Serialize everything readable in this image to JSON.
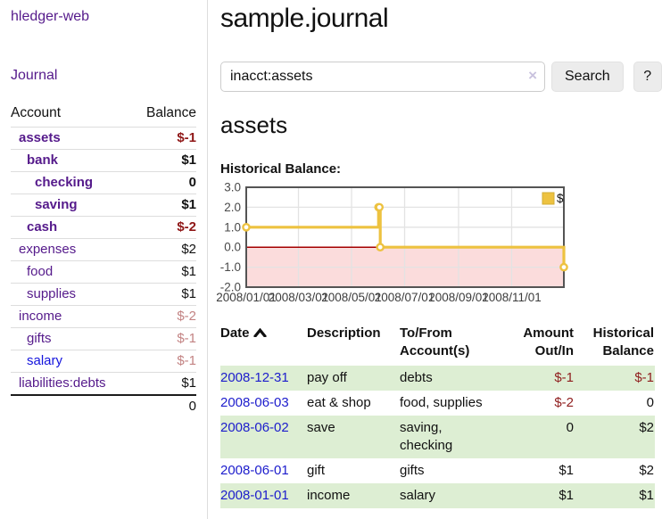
{
  "sidebar": {
    "brand": "hledger-web",
    "nav": {
      "journal_label": "Journal"
    },
    "accounts_table": {
      "headers": {
        "account": "Account",
        "balance": "Balance"
      },
      "rows": [
        {
          "account": "assets",
          "balance": "$-1",
          "level": 1,
          "bold": true,
          "visited": true
        },
        {
          "account": "bank",
          "balance": "$1",
          "level": 2,
          "bold": true,
          "visited": true
        },
        {
          "account": "checking",
          "balance": "0",
          "level": 3,
          "bold": true,
          "visited": true
        },
        {
          "account": "saving",
          "balance": "$1",
          "level": 3,
          "bold": true,
          "visited": true
        },
        {
          "account": "cash",
          "balance": "$-2",
          "level": 2,
          "bold": true,
          "visited": true
        },
        {
          "account": "expenses",
          "balance": "$2",
          "level": 1,
          "bold": false,
          "visited": true
        },
        {
          "account": "food",
          "balance": "$1",
          "level": 2,
          "bold": false,
          "visited": true
        },
        {
          "account": "supplies",
          "balance": "$1",
          "level": 2,
          "bold": false,
          "visited": true
        },
        {
          "account": "income",
          "balance": "$-2",
          "level": 1,
          "bold": false,
          "visited": true
        },
        {
          "account": "gifts",
          "balance": "$-1",
          "level": 2,
          "bold": false,
          "visited": true
        },
        {
          "account": "salary",
          "balance": "$-1",
          "level": 2,
          "bold": false,
          "visited": false
        },
        {
          "account": "liabilities:debts",
          "balance": "$1",
          "level": 1,
          "bold": false,
          "visited": true
        }
      ],
      "total": "0"
    }
  },
  "header": {
    "title": "sample.journal"
  },
  "search": {
    "value": "inacct:assets",
    "clear_icon": "×",
    "button_label": "Search",
    "help_label": "?"
  },
  "account_page": {
    "title": "assets",
    "chart_label": "Historical Balance:"
  },
  "chart_data": {
    "type": "line",
    "step": true,
    "title": "Historical Balance",
    "series": [
      {
        "name": "$",
        "color": "#edc240",
        "points": [
          [
            "2008-01-01",
            1
          ],
          [
            "2008-06-01",
            2
          ],
          [
            "2008-06-02",
            2
          ],
          [
            "2008-06-03",
            0
          ],
          [
            "2008-12-31",
            -1
          ]
        ]
      }
    ],
    "xlim": [
      "2008-01-01",
      "2008-12-31"
    ],
    "ylim": [
      -2,
      3
    ],
    "x_ticks": [
      "2008/01/01",
      "2008/03/01",
      "2008/05/01",
      "2008/07/01",
      "2008/09/01",
      "2008/11/01"
    ],
    "y_ticks": [
      "3.0",
      "2.0",
      "1.0",
      "0.0",
      "-1.0",
      "-2.0"
    ],
    "legend": {
      "label": "$",
      "position": "top-right"
    },
    "grid": true,
    "colors": {
      "line": "#edc240",
      "marker_fill": "#ffffff",
      "negative_region_fill": "#fbdcdc",
      "zero_line": "#a40000",
      "border": "#545454",
      "gridline": "#e3e3e3",
      "axis_text": "#4a4a4a"
    }
  },
  "transactions_table": {
    "headers": [
      {
        "label": "Date",
        "sortable": true,
        "sort_icon": "chevron-up",
        "align": "left"
      },
      {
        "label": "Description",
        "align": "left"
      },
      {
        "label": "To/From Account(s)",
        "align": "left"
      },
      {
        "label": "Amount Out/In",
        "align": "right"
      },
      {
        "label": "Historical Balance",
        "align": "right"
      }
    ],
    "rows": [
      {
        "date": "2008-12-31",
        "description": "pay off",
        "accounts": "debts",
        "amount": "$-1",
        "balance": "$-1"
      },
      {
        "date": "2008-06-03",
        "description": "eat & shop",
        "accounts": "food, supplies",
        "amount": "$-2",
        "balance": "0"
      },
      {
        "date": "2008-06-02",
        "description": "save",
        "accounts": "saving, checking",
        "amount": "0",
        "balance": "$2"
      },
      {
        "date": "2008-06-01",
        "description": "gift",
        "accounts": "gifts",
        "amount": "$1",
        "balance": "$2"
      },
      {
        "date": "2008-01-01",
        "description": "income",
        "accounts": "salary",
        "amount": "$1",
        "balance": "$1"
      }
    ]
  }
}
